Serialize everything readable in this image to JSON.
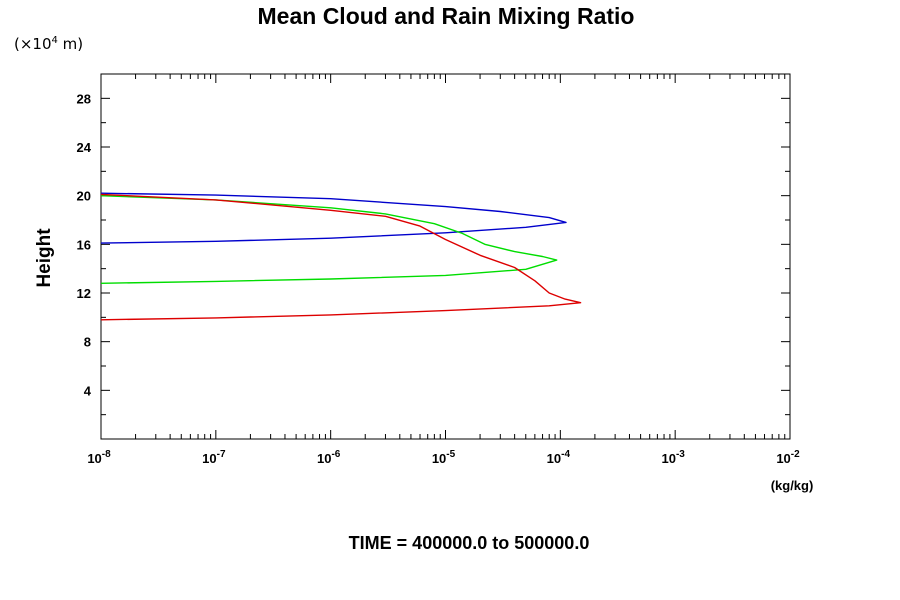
{
  "chart_data": {
    "type": "line",
    "title": "Mean Cloud and Rain Mixing Ratio",
    "y_multiplier": "(×10",
    "y_multiplier_exp": "4",
    "y_multiplier_unit": " m)",
    "ylabel": "Height",
    "xunit": "(kg/kg)",
    "footer": "TIME = 400000.0 to 500000.0",
    "x_scale": "log",
    "xlim": [
      1e-08,
      0.01
    ],
    "ylim": [
      0,
      30
    ],
    "grid": false,
    "y_ticks": [
      4,
      8,
      12,
      16,
      20,
      24,
      28
    ],
    "x_ticks": [
      {
        "base": "10",
        "exp": "-8",
        "value": 1e-08
      },
      {
        "base": "10",
        "exp": "-7",
        "value": 1e-07
      },
      {
        "base": "10",
        "exp": "-6",
        "value": 1e-06
      },
      {
        "base": "10",
        "exp": "-5",
        "value": 1e-05
      },
      {
        "base": "10",
        "exp": "-4",
        "value": 0.0001
      },
      {
        "base": "10",
        "exp": "-3",
        "value": 0.001
      },
      {
        "base": "10",
        "exp": "-2",
        "value": 0.01
      }
    ],
    "series": [
      {
        "color": "#0000cc",
        "points": [
          [
            1e-08,
            16.1
          ],
          [
            1e-07,
            16.25
          ],
          [
            1e-06,
            16.5
          ],
          [
            1e-05,
            16.95
          ],
          [
            5e-05,
            17.4
          ],
          [
            0.000112,
            17.8
          ],
          [
            8e-05,
            18.2
          ],
          [
            3e-05,
            18.7
          ],
          [
            1e-05,
            19.1
          ],
          [
            1e-06,
            19.75
          ],
          [
            1e-07,
            20.05
          ],
          [
            1e-08,
            20.2
          ]
        ]
      },
      {
        "color": "#00dd00",
        "points": [
          [
            1e-08,
            12.8
          ],
          [
            1e-07,
            12.95
          ],
          [
            1e-06,
            13.15
          ],
          [
            1e-05,
            13.45
          ],
          [
            5e-05,
            13.95
          ],
          [
            9.3e-05,
            14.7
          ],
          [
            7e-05,
            15.0
          ],
          [
            4e-05,
            15.4
          ],
          [
            2.2e-05,
            16.0
          ],
          [
            1.4e-05,
            16.9
          ],
          [
            8e-06,
            17.7
          ],
          [
            3e-06,
            18.5
          ],
          [
            1e-06,
            19.0
          ],
          [
            1e-07,
            19.65
          ],
          [
            1e-08,
            20.0
          ]
        ]
      },
      {
        "color": "#dd0000",
        "points": [
          [
            1e-08,
            9.8
          ],
          [
            1e-07,
            9.95
          ],
          [
            1e-06,
            10.2
          ],
          [
            1e-05,
            10.55
          ],
          [
            8e-05,
            10.95
          ],
          [
            0.00015,
            11.2
          ],
          [
            0.00011,
            11.5
          ],
          [
            8e-05,
            12.0
          ],
          [
            6e-05,
            13.0
          ],
          [
            4e-05,
            14.1
          ],
          [
            2e-05,
            15.1
          ],
          [
            1e-05,
            16.4
          ],
          [
            6e-06,
            17.5
          ],
          [
            3e-06,
            18.3
          ],
          [
            1e-06,
            18.8
          ],
          [
            1e-07,
            19.65
          ],
          [
            1e-08,
            20.1
          ]
        ]
      }
    ]
  }
}
